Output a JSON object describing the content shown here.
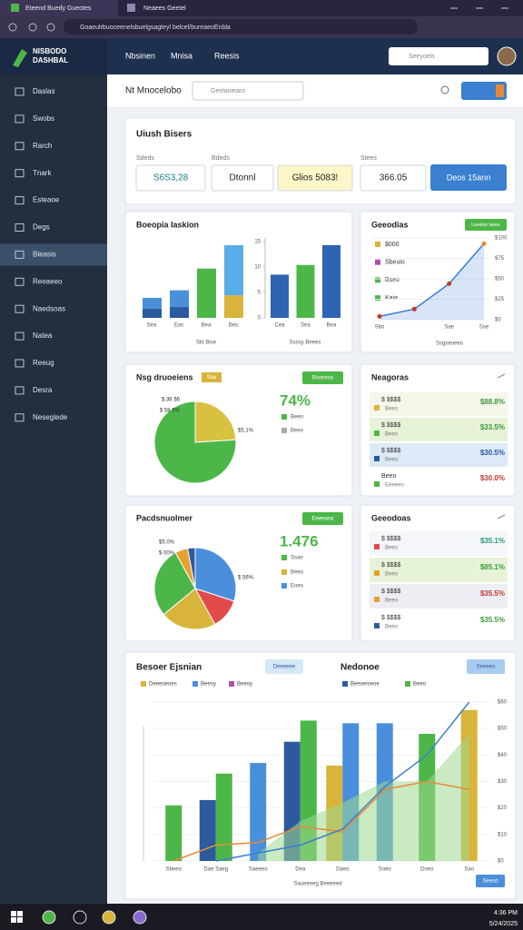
{
  "browser": {
    "tabs": [
      "Eteend Buedy Gueotes",
      "Neaees Geetel"
    ],
    "url": "Goaeulrbuoceenelsbuelgsagteyl belcel/bureaeoEnbla"
  },
  "header": {
    "logo": [
      "NISBODO",
      "DASHBAL"
    ],
    "nav": [
      "Nbsinen",
      "Mnisa",
      "Reesis"
    ],
    "search": "Seeyoeis"
  },
  "sidebar": {
    "items": [
      "Daslas",
      "Swobs",
      "Rarch",
      "Tnark",
      "Esteaoe",
      "Degs",
      "Bleasis",
      "Reeaeeo",
      "Naedsoas",
      "Natea",
      "Reeug",
      "Desra",
      "Neseglede"
    ],
    "active": 6
  },
  "toolbar": {
    "title": "Nt Mnocelobo",
    "search": "Geelaoiearo"
  },
  "summary": {
    "title": "Uiush Bisers",
    "fields": [
      {
        "label": "Sdeds",
        "value": "S6S3,28"
      },
      {
        "label": "Bdeds",
        "value": "Dtonnl"
      },
      {
        "value": "Glios 5083!"
      },
      {
        "label": "Stees",
        "value": "366.05"
      }
    ],
    "button": "Deos 15ann"
  },
  "bar_card": {
    "title": "Boeopia Iaskion",
    "left": {
      "ylim": [
        0,
        100
      ],
      "xlabel": "Sbi Bise",
      "bars": [
        {
          "label": "Sea",
          "segments": [
            {
              "value": 11,
              "color": "#2d5a9e"
            },
            {
              "value": 13,
              "color": "#4a90d9"
            }
          ]
        },
        {
          "label": "Eas",
          "segments": [
            {
              "value": 13,
              "color": "#2d5a9e"
            },
            {
              "value": 20,
              "color": "#4a90d9"
            }
          ]
        },
        {
          "label": "Bea",
          "segments": [
            {
              "value": 59,
              "color": "#4cb748"
            }
          ]
        },
        {
          "label": "Bes",
          "segments": [
            {
              "value": 27,
              "color": "#d8b43a"
            },
            {
              "value": 60,
              "color": "#5aaee8"
            }
          ]
        }
      ]
    },
    "right": {
      "ylim": [
        0,
        15
      ],
      "yticks": [
        0,
        5,
        10,
        15
      ],
      "xlabel": "Ssssy Beees",
      "bars": [
        {
          "label": "Cea",
          "value": 8.5,
          "color": "#2f64b3"
        },
        {
          "label": "Sea",
          "value": 10.4,
          "color": "#4cb748"
        },
        {
          "label": "Bea",
          "value": 14.3,
          "color": "#2f64b3"
        }
      ]
    }
  },
  "line_card": {
    "title": "Geeodias",
    "button": "Leeeioe laeee",
    "legend": [
      {
        "label": "$000",
        "color": "#d8b43a"
      },
      {
        "label": "Sbeuio",
        "color": "#b04fb0"
      },
      {
        "label": "Bseo",
        "color": "#4cb748"
      },
      {
        "label": "Kaia",
        "color": "#4cb748"
      }
    ],
    "categories": [
      "Sbo",
      null,
      "Sae",
      "Sse"
    ],
    "values": [
      4,
      13,
      44,
      93
    ],
    "color": "#3a7fd0",
    "ylim": [
      0,
      100
    ],
    "yticks": [
      {
        "value": 0,
        "label": "$0"
      },
      {
        "value": 25,
        "label": "$25"
      },
      {
        "value": 50,
        "label": "$50"
      },
      {
        "value": 75,
        "label": "$75"
      },
      {
        "value": 100,
        "label": "$100"
      }
    ],
    "xlabel": "Ssgseoeeo"
  },
  "pie1": {
    "title": "Nsg druoeiens",
    "badge": "Sae",
    "button": "Bsoeeso",
    "values": [
      24,
      76
    ],
    "colors": [
      "#d8c040",
      "#4cb748"
    ],
    "annotations": [
      "$.36 $6",
      "$ 58 5%",
      "$5.1%"
    ],
    "stat": "74%",
    "legend": [
      {
        "label": "Beeo",
        "color": "#4cb748"
      },
      {
        "label": "Beeo",
        "color": "#aaaaaa"
      }
    ]
  },
  "pie2": {
    "title": "Pacdsnuolmer",
    "button": "Eeeeaoa",
    "values": [
      30,
      12,
      22,
      28,
      5,
      3
    ],
    "colors": [
      "#4a8fdc",
      "#e24b4b",
      "#d8b43a",
      "#4cb748",
      "#e8a030",
      "#2d5a9e"
    ],
    "annotations": [
      "$5.0%",
      "$ 00%",
      "$ 56%"
    ],
    "stat": "1.476",
    "legend": [
      {
        "label": "Ssae",
        "color": "#4cb748"
      },
      {
        "label": "Beeo",
        "color": "#d8b43a"
      },
      {
        "label": "Eoeo",
        "color": "#4a8fdc"
      }
    ]
  },
  "list1": {
    "title": "Neagoras",
    "rows": [
      {
        "label": "$ $$$$",
        "sub": "Beeo",
        "value": "$88.8%",
        "color": "#d8b43a",
        "value_color": "#3a9a3a",
        "bg": "#f6f7ea"
      },
      {
        "label": "$ $$$$",
        "sub": "Beeo",
        "value": "$33.5%",
        "color": "#4cb748",
        "value_color": "#3a9a3a",
        "bg": "#e6f3d8"
      },
      {
        "label": "$ $$$$",
        "sub": "Beeo",
        "value": "$30.5%",
        "color": "#2d5a9e",
        "value_color": "#2d5a9e",
        "bg": "#dde9f7"
      },
      {
        "label": "Beeo",
        "sub": "Eeeeeo",
        "value": "$30.0%",
        "color": "#4cb748",
        "value_color": "#c0392b",
        "bg": "#ffffff"
      }
    ]
  },
  "list2": {
    "title": "Geeodoas",
    "rows": [
      {
        "label": "$ $$$$",
        "sub": "Beeo",
        "value": "$35.1%",
        "color": "#e24b4b",
        "value_color": "#2a9a7a",
        "bg": "#f4f6fa"
      },
      {
        "label": "$ $$$$",
        "sub": "Beeo",
        "value": "$85.1%",
        "color": "#e8a030",
        "value_color": "#3a9a3a",
        "bg": "#e6f3d8"
      },
      {
        "label": "$ $$$$",
        "sub": "Beeo",
        "value": "$35.5%",
        "color": "#e8a030",
        "value_color": "#c0392b",
        "bg": "#eceef4"
      },
      {
        "label": "$ $$$$",
        "sub": "Beeo",
        "value": "$35.5%",
        "color": "#2d5a9e",
        "value_color": "#3a9a3a",
        "bg": "#ffffff"
      }
    ]
  },
  "combo": {
    "title": "Besoer Ejsnian",
    "title2": "Nedonoe",
    "buttons": [
      "Deeeeee",
      "Seeeeo"
    ],
    "footer_button": "Seeso",
    "legend": [
      {
        "label": "Deeeoeoes",
        "color": "#d8b43a"
      },
      {
        "label": "Beeoy",
        "color": "#4a8fdc"
      },
      {
        "label": "Beeoy",
        "color": "#b04fb0"
      }
    ],
    "legend2": [
      {
        "label": "Beeoeiseoe",
        "color": "#2d5a9e"
      },
      {
        "label": "Beeo",
        "color": "#4cb748"
      }
    ],
    "categories": [
      "Sbeeo",
      "Dae Saeg",
      "Saeeeo",
      "Dea",
      "Daeo",
      "Soeo",
      "Doeo",
      "Sao"
    ],
    "ylim": [
      0,
      60
    ],
    "yticks": [
      {
        "value": 0,
        "label": "$0"
      },
      {
        "value": 10,
        "label": "$10"
      },
      {
        "value": 20,
        "label": "$20"
      },
      {
        "value": 30,
        "label": "$30"
      },
      {
        "value": 40,
        "label": "$40"
      },
      {
        "value": 50,
        "label": "$50"
      },
      {
        "value": 60,
        "label": "$60"
      }
    ],
    "bars": [
      {
        "color": "#2d5a9e",
        "values": [
          null,
          23,
          null,
          45,
          null,
          null,
          null,
          null
        ]
      },
      {
        "color": "#4cb748",
        "values": [
          21,
          33,
          null,
          53,
          null,
          null,
          48,
          null
        ]
      },
      {
        "color": "#d8b43a",
        "values": [
          null,
          null,
          null,
          null,
          36,
          null,
          null,
          57
        ]
      },
      {
        "color": "#4a8fdc",
        "values": [
          null,
          null,
          37,
          null,
          52,
          52,
          null,
          null
        ]
      }
    ],
    "area": {
      "color": "#9fd88f",
      "values": [
        null,
        null,
        3,
        15,
        22,
        30,
        30,
        48
      ]
    },
    "lines": [
      {
        "color": "#e8893a",
        "values": [
          0,
          6,
          7,
          13,
          11,
          27,
          30,
          27
        ]
      },
      {
        "color": "#3a7fd0",
        "values": [
          null,
          0,
          3,
          6,
          12,
          28,
          40,
          60
        ]
      }
    ],
    "xlabel": "Saueeeeg Beeeeed"
  },
  "taskbar": {
    "time": "4:36 PM",
    "date": "5/24/2025"
  }
}
